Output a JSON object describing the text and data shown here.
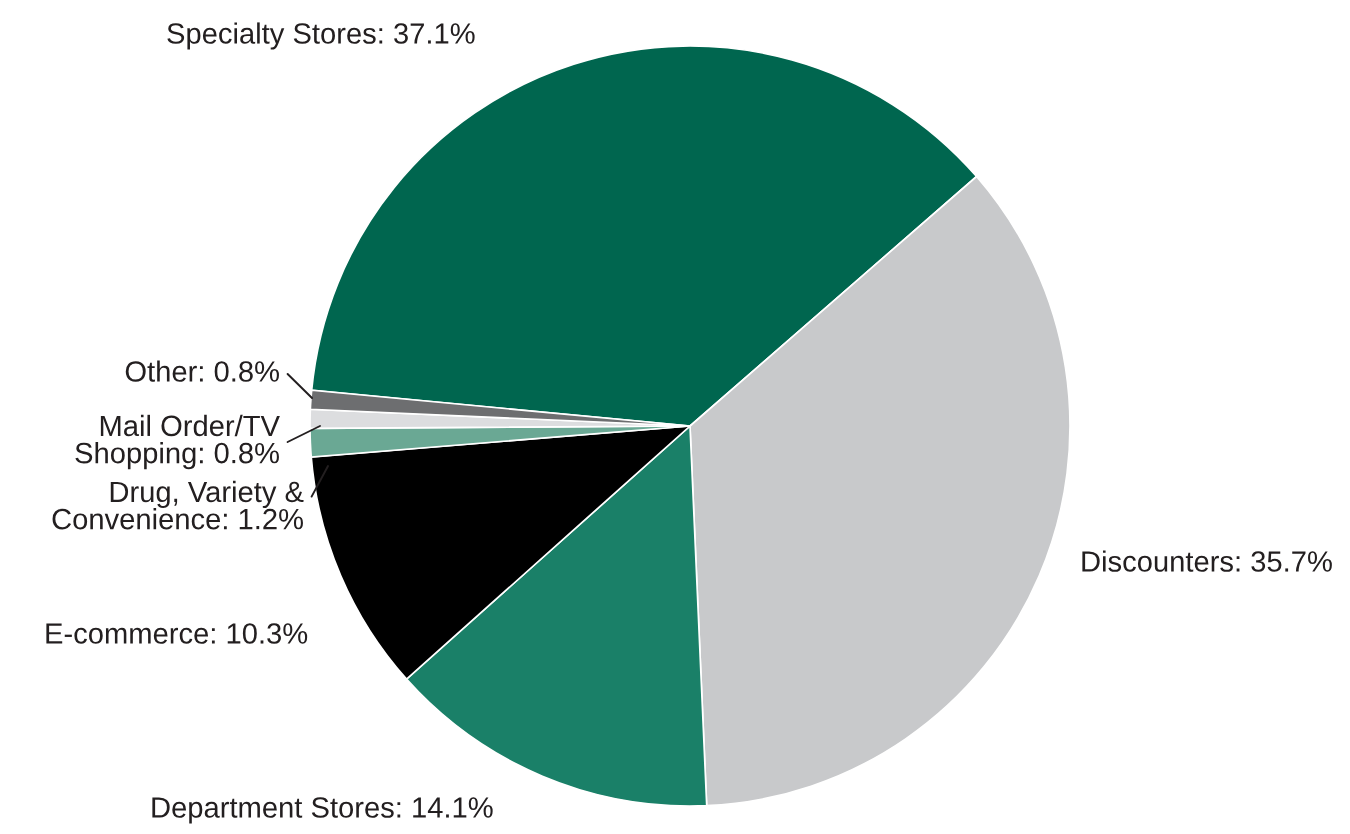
{
  "chart_data": {
    "type": "pie",
    "categories": [
      "Specialty Stores",
      "Discounters",
      "Department Stores",
      "E-commerce",
      "Drug, Variety &\nConvenience",
      "Mail Order/TV\nShopping",
      "Other"
    ],
    "values": [
      37.1,
      35.7,
      14.1,
      10.3,
      1.2,
      0.8,
      0.8
    ],
    "value_labels": [
      "37.1%",
      "35.7%",
      "14.1%",
      "10.3%",
      "1.2%",
      "0.8%",
      "0.8%"
    ],
    "colors": [
      "#00664f",
      "#c8c9cb",
      "#1a8068",
      "#000000",
      "#6aa894",
      "#dcdddf",
      "#6d6e70"
    ]
  }
}
